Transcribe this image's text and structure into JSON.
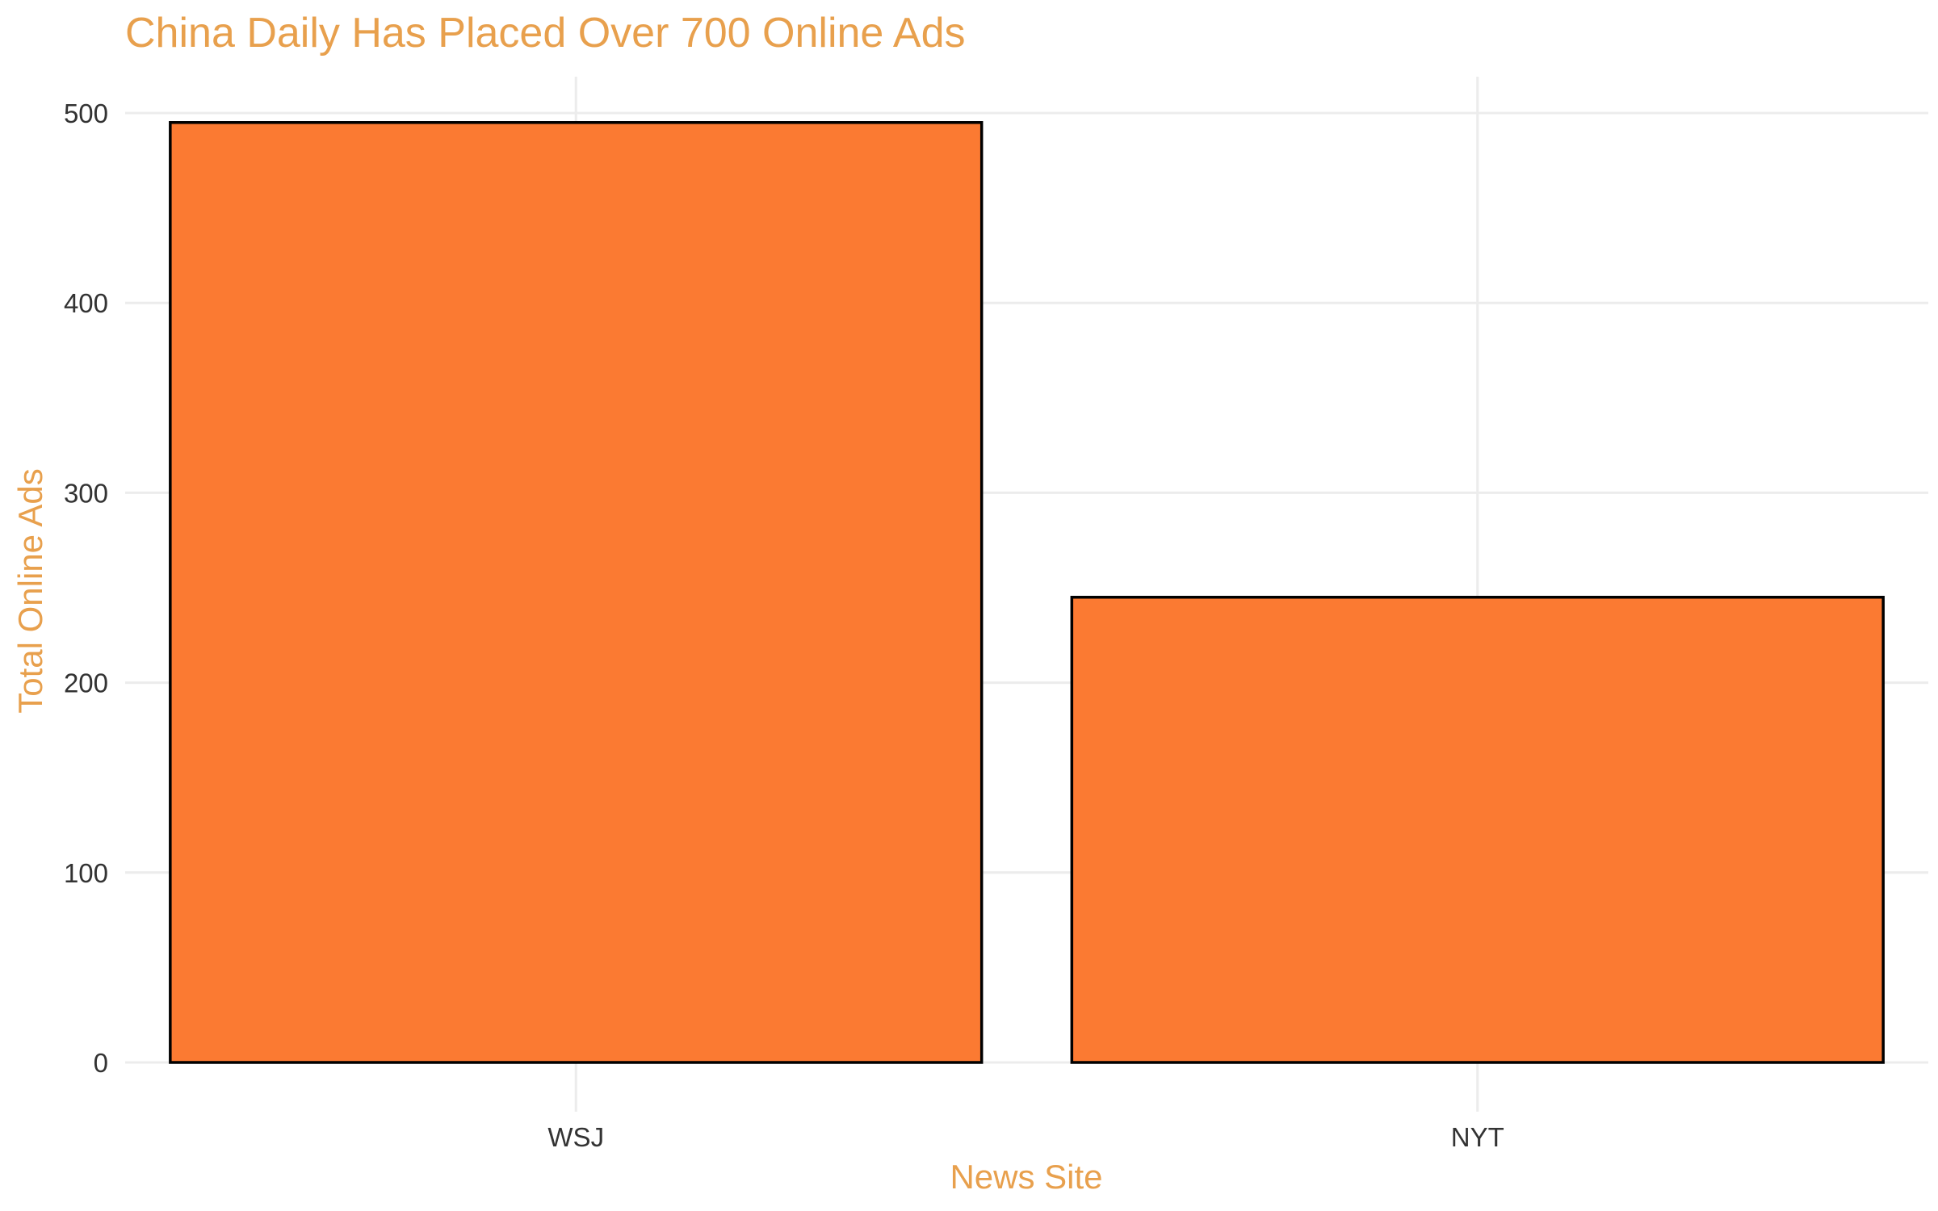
{
  "chart_data": {
    "type": "bar",
    "title": "China Daily Has Placed Over 700 Online Ads",
    "xlabel": "News Site",
    "ylabel": "Total Online Ads",
    "categories": [
      "WSJ",
      "NYT"
    ],
    "values": [
      495,
      245
    ],
    "ylim": [
      0,
      520
    ],
    "yticks": [
      0,
      100,
      200,
      300,
      400,
      500
    ],
    "grid": true,
    "legend": "none",
    "colors": {
      "bar_fill": "#fb7a32",
      "bar_stroke": "#000000",
      "title": "#e8a04d",
      "axis_title": "#e8a04d",
      "tick_label": "#333333",
      "grid": "#ececec"
    }
  }
}
